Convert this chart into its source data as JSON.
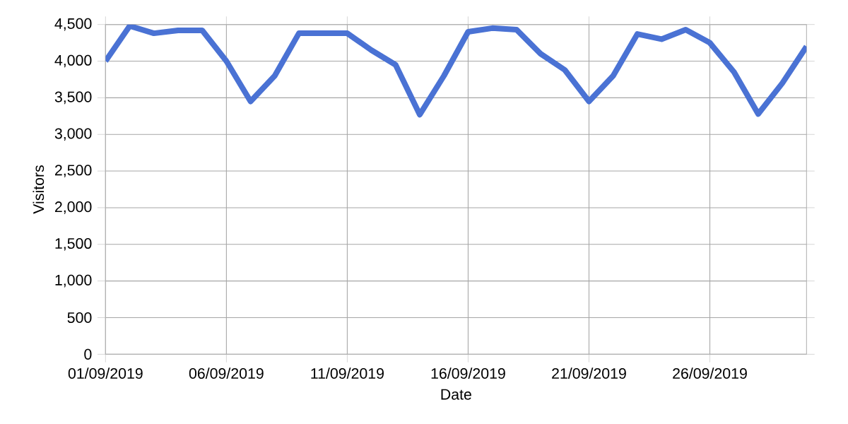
{
  "chart_data": {
    "type": "line",
    "xlabel": "Date",
    "ylabel": "Visitors",
    "x": [
      "2019-09-01",
      "2019-09-02",
      "2019-09-03",
      "2019-09-04",
      "2019-09-05",
      "2019-09-06",
      "2019-09-07",
      "2019-09-08",
      "2019-09-09",
      "2019-09-10",
      "2019-09-11",
      "2019-09-12",
      "2019-09-13",
      "2019-09-14",
      "2019-09-15",
      "2019-09-16",
      "2019-09-17",
      "2019-09-18",
      "2019-09-19",
      "2019-09-20",
      "2019-09-21",
      "2019-09-22",
      "2019-09-23",
      "2019-09-24",
      "2019-09-25",
      "2019-09-26",
      "2019-09-27",
      "2019-09-28",
      "2019-09-29",
      "2019-09-30"
    ],
    "series": [
      {
        "color": "#4a72d4",
        "values": [
          4000,
          4480,
          4380,
          4420,
          4420,
          4000,
          3450,
          3800,
          4380,
          4380,
          4380,
          4150,
          3950,
          3270,
          3800,
          4400,
          4450,
          4430,
          4100,
          3880,
          3450,
          3800,
          4370,
          4300,
          4430,
          4250,
          3850,
          3280,
          3700,
          4200
        ]
      }
    ],
    "xlim": [
      "2019-09-01",
      "2019-09-30"
    ],
    "xticks": [
      {
        "value": "2019-09-01",
        "label": "01/09/2019"
      },
      {
        "value": "2019-09-06",
        "label": "06/09/2019"
      },
      {
        "value": "2019-09-11",
        "label": "11/09/2019"
      },
      {
        "value": "2019-09-16",
        "label": "16/09/2019"
      },
      {
        "value": "2019-09-21",
        "label": "21/09/2019"
      },
      {
        "value": "2019-09-26",
        "label": "26/09/2019"
      }
    ],
    "ylim": [
      0,
      4500
    ],
    "yticks": [
      0,
      500,
      {
        "value": 1000,
        "label": "1,000"
      },
      {
        "value": 1500,
        "label": "1,500"
      },
      {
        "value": 2000,
        "label": "2,000"
      },
      {
        "value": 2500,
        "label": "2,500"
      },
      {
        "value": 3000,
        "label": "3,000"
      },
      {
        "value": 3500,
        "label": "3,500"
      },
      {
        "value": 4000,
        "label": "4,000"
      },
      {
        "value": 4500,
        "label": "4,500"
      }
    ],
    "grid": true,
    "marker": "none",
    "line_style": "solid"
  }
}
